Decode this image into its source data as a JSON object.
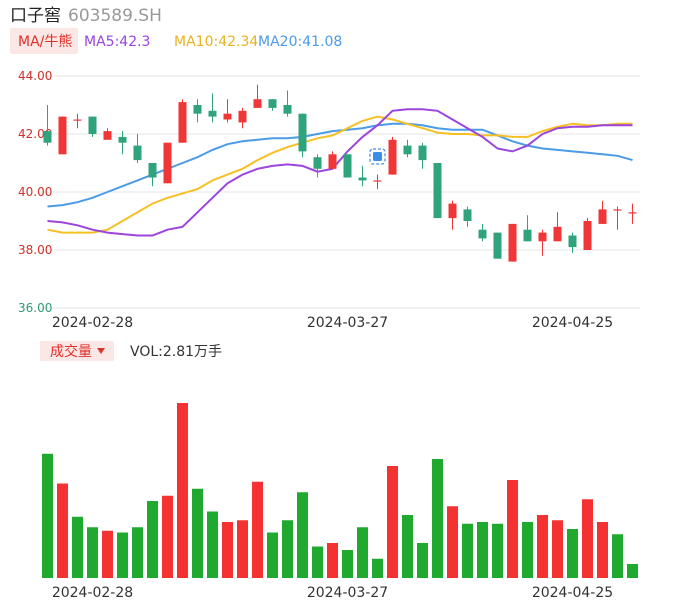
{
  "header": {
    "name": "口子窖",
    "code": "603589.SH"
  },
  "legend": {
    "ma_button": "MA/牛熊",
    "ma5": "MA5:42.3",
    "ma10": "MA10:42.34",
    "ma20": "MA20:41.08"
  },
  "volume_panel": {
    "button": "成交量",
    "vol_text": "VOL:2.81万手"
  },
  "colors": {
    "up": "#f03636",
    "down": "#2fa37b",
    "vol_up": "#f53232",
    "vol_down": "#1fa92f",
    "ma5": "#9b44de",
    "ma10": "#f6c025",
    "ma20": "#4b9be6",
    "grid": "#e4e4e4",
    "button_bg": "#fbe7e5",
    "button_text": "#e0302a"
  },
  "chart_data": [
    {
      "type": "candlestick",
      "ylim": [
        36.0,
        44.0
      ],
      "yticks": [
        "44.00",
        "42.00",
        "40.00",
        "38.00",
        "36.00"
      ],
      "xtick_labels": [
        "2024-02-28",
        "2024-03-27",
        "2024-04-25"
      ],
      "xtick_index": [
        3,
        20,
        35
      ],
      "candles": [
        {
          "o": 42.1,
          "c": 41.7,
          "h": 43.0,
          "l": 41.6
        },
        {
          "o": 41.3,
          "c": 42.6,
          "h": 42.6,
          "l": 41.3
        },
        {
          "o": 42.5,
          "c": 42.5,
          "h": 42.7,
          "l": 42.2
        },
        {
          "o": 42.6,
          "c": 42.0,
          "h": 42.6,
          "l": 41.9
        },
        {
          "o": 41.8,
          "c": 42.1,
          "h": 42.2,
          "l": 41.8
        },
        {
          "o": 41.9,
          "c": 41.7,
          "h": 42.1,
          "l": 41.3
        },
        {
          "o": 41.6,
          "c": 41.1,
          "h": 42.0,
          "l": 41.0
        },
        {
          "o": 41.0,
          "c": 40.5,
          "h": 41.0,
          "l": 40.2
        },
        {
          "o": 40.3,
          "c": 41.7,
          "h": 41.7,
          "l": 40.3
        },
        {
          "o": 41.7,
          "c": 43.1,
          "h": 43.2,
          "l": 41.7
        },
        {
          "o": 43.0,
          "c": 42.7,
          "h": 43.2,
          "l": 42.4
        },
        {
          "o": 42.8,
          "c": 42.6,
          "h": 43.4,
          "l": 42.4
        },
        {
          "o": 42.5,
          "c": 42.7,
          "h": 43.2,
          "l": 42.4
        },
        {
          "o": 42.4,
          "c": 42.8,
          "h": 42.9,
          "l": 42.2
        },
        {
          "o": 42.9,
          "c": 43.2,
          "h": 43.7,
          "l": 42.9
        },
        {
          "o": 43.2,
          "c": 42.9,
          "h": 43.2,
          "l": 42.8
        },
        {
          "o": 43.0,
          "c": 42.7,
          "h": 43.5,
          "l": 42.6
        },
        {
          "o": 42.7,
          "c": 41.4,
          "h": 42.7,
          "l": 41.2
        },
        {
          "o": 41.2,
          "c": 40.8,
          "h": 41.3,
          "l": 40.5
        },
        {
          "o": 40.8,
          "c": 41.3,
          "h": 41.4,
          "l": 40.8
        },
        {
          "o": 41.3,
          "c": 40.5,
          "h": 41.3,
          "l": 40.5
        },
        {
          "o": 40.5,
          "c": 40.4,
          "h": 40.9,
          "l": 40.2
        },
        {
          "o": 40.4,
          "c": 40.4,
          "h": 40.6,
          "l": 40.1
        },
        {
          "o": 40.6,
          "c": 41.8,
          "h": 41.9,
          "l": 40.6
        },
        {
          "o": 41.6,
          "c": 41.3,
          "h": 41.8,
          "l": 41.2
        },
        {
          "o": 41.6,
          "c": 41.1,
          "h": 41.7,
          "l": 40.8
        },
        {
          "o": 41.0,
          "c": 39.1,
          "h": 41.0,
          "l": 39.1
        },
        {
          "o": 39.1,
          "c": 39.6,
          "h": 39.7,
          "l": 38.7
        },
        {
          "o": 39.4,
          "c": 39.0,
          "h": 39.5,
          "l": 38.8
        },
        {
          "o": 38.7,
          "c": 38.4,
          "h": 38.9,
          "l": 38.3
        },
        {
          "o": 38.6,
          "c": 37.7,
          "h": 38.6,
          "l": 37.7
        },
        {
          "o": 37.6,
          "c": 38.9,
          "h": 38.9,
          "l": 37.6
        },
        {
          "o": 38.7,
          "c": 38.3,
          "h": 39.2,
          "l": 38.3
        },
        {
          "o": 38.3,
          "c": 38.6,
          "h": 38.7,
          "l": 37.8
        },
        {
          "o": 38.3,
          "c": 38.8,
          "h": 39.3,
          "l": 38.3
        },
        {
          "o": 38.5,
          "c": 38.1,
          "h": 38.6,
          "l": 37.9
        },
        {
          "o": 38.0,
          "c": 39.0,
          "h": 39.1,
          "l": 38.0
        },
        {
          "o": 38.9,
          "c": 39.4,
          "h": 39.7,
          "l": 38.9
        },
        {
          "o": 39.4,
          "c": 39.4,
          "h": 39.5,
          "l": 38.7
        },
        {
          "o": 39.3,
          "c": 39.3,
          "h": 39.6,
          "l": 38.9
        }
      ],
      "ma5": [
        39.0,
        38.95,
        38.85,
        38.7,
        38.6,
        38.55,
        38.5,
        38.5,
        38.7,
        38.8,
        39.3,
        39.8,
        40.3,
        40.6,
        40.8,
        40.9,
        40.95,
        40.9,
        40.7,
        40.8,
        41.4,
        41.9,
        42.3,
        42.8,
        42.85,
        42.85,
        42.8,
        42.5,
        42.2,
        41.9,
        41.5,
        41.4,
        41.6,
        42.0,
        42.2,
        42.25,
        42.25,
        42.3,
        42.3,
        42.3
      ],
      "ma10": [
        38.7,
        38.6,
        38.6,
        38.6,
        38.7,
        39.0,
        39.3,
        39.6,
        39.8,
        39.95,
        40.1,
        40.4,
        40.6,
        40.8,
        41.1,
        41.35,
        41.55,
        41.7,
        41.85,
        41.95,
        42.2,
        42.45,
        42.6,
        42.5,
        42.35,
        42.2,
        42.05,
        42.0,
        42.0,
        41.95,
        41.95,
        41.9,
        41.9,
        42.1,
        42.25,
        42.35,
        42.3,
        42.3,
        42.35,
        42.35
      ],
      "ma20": [
        39.5,
        39.55,
        39.65,
        39.8,
        40.0,
        40.2,
        40.4,
        40.6,
        40.8,
        41.0,
        41.2,
        41.45,
        41.65,
        41.75,
        41.8,
        41.85,
        41.85,
        41.9,
        42.0,
        42.1,
        42.15,
        42.2,
        42.3,
        42.35,
        42.35,
        42.3,
        42.2,
        42.15,
        42.15,
        42.15,
        41.95,
        41.75,
        41.6,
        41.5,
        41.45,
        41.4,
        41.35,
        41.3,
        41.25,
        41.1
      ]
    },
    {
      "type": "bar",
      "name": "成交量",
      "ylim": [
        0,
        100
      ],
      "values": [
        71,
        54,
        35,
        29,
        27,
        26,
        29,
        44,
        47,
        100,
        51,
        38,
        32,
        33,
        55,
        26,
        33,
        49,
        18,
        20,
        16,
        29,
        11,
        64,
        36,
        20,
        68,
        41,
        31,
        32,
        31,
        56,
        32,
        36,
        33,
        28,
        45,
        32,
        25,
        8
      ],
      "up": [
        false,
        true,
        false,
        false,
        true,
        false,
        false,
        false,
        true,
        true,
        false,
        false,
        true,
        true,
        true,
        false,
        false,
        false,
        false,
        true,
        false,
        false,
        false,
        true,
        false,
        false,
        false,
        true,
        false,
        false,
        false,
        true,
        false,
        true,
        true,
        false,
        true,
        true,
        false,
        false
      ]
    }
  ]
}
